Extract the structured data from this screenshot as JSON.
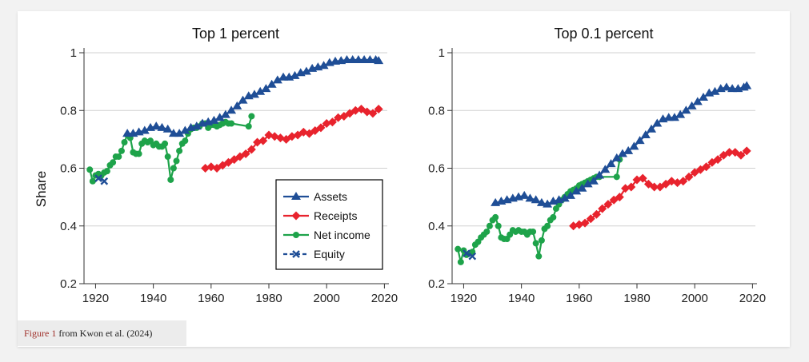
{
  "caption": {
    "figure_ref": "Figure 1",
    "text": " from Kwon et al. (2024)"
  },
  "colors": {
    "assets": "#1f4e96",
    "receipts": "#e8232d",
    "net_income": "#1ea34a",
    "equity": "#1f4e96",
    "grid": "#d0d0d0",
    "axis": "#333333"
  },
  "legend": {
    "placement": "bottom-right of left panel",
    "items": [
      {
        "key": "assets",
        "label": "Assets"
      },
      {
        "key": "receipts",
        "label": "Receipts"
      },
      {
        "key": "net_income",
        "label": "Net income"
      },
      {
        "key": "equity",
        "label": "Equity"
      }
    ]
  },
  "chart_data": [
    {
      "type": "line",
      "title": "Top 1 percent",
      "ylabel": "Share",
      "xlabel": "",
      "xlim": [
        1916,
        2021
      ],
      "ylim": [
        0.2,
        1.0
      ],
      "xticks": [
        "1920",
        "1940",
        "1960",
        "1980",
        "2000",
        "2020"
      ],
      "yticks": [
        "0.2",
        "0.4",
        "0.6",
        "0.8",
        "1"
      ],
      "grid": true,
      "series": [
        {
          "name": "Assets",
          "key": "assets",
          "marker": "triangle",
          "x": [
            1931,
            1933,
            1935,
            1937,
            1939,
            1941,
            1943,
            1945,
            1947,
            1949,
            1951,
            1953,
            1955,
            1957,
            1959,
            1961,
            1963,
            1965,
            1967,
            1969,
            1971,
            1973,
            1975,
            1977,
            1979,
            1981,
            1983,
            1985,
            1987,
            1989,
            1991,
            1993,
            1995,
            1997,
            1999,
            2001,
            2003,
            2005,
            2007,
            2009,
            2011,
            2013,
            2015,
            2017,
            2018
          ],
          "y": [
            0.72,
            0.72,
            0.725,
            0.73,
            0.74,
            0.745,
            0.74,
            0.735,
            0.72,
            0.72,
            0.73,
            0.74,
            0.745,
            0.755,
            0.76,
            0.765,
            0.775,
            0.785,
            0.8,
            0.815,
            0.835,
            0.85,
            0.855,
            0.865,
            0.875,
            0.89,
            0.905,
            0.915,
            0.915,
            0.92,
            0.93,
            0.935,
            0.945,
            0.95,
            0.955,
            0.965,
            0.97,
            0.972,
            0.975,
            0.975,
            0.975,
            0.975,
            0.975,
            0.975,
            0.972
          ]
        },
        {
          "name": "Receipts",
          "key": "receipts",
          "marker": "diamond",
          "x": [
            1958,
            1960,
            1962,
            1964,
            1966,
            1968,
            1970,
            1972,
            1974,
            1976,
            1978,
            1980,
            1982,
            1984,
            1986,
            1988,
            1990,
            1992,
            1994,
            1996,
            1998,
            2000,
            2002,
            2004,
            2006,
            2008,
            2010,
            2012,
            2014,
            2016,
            2018
          ],
          "y": [
            0.6,
            0.605,
            0.6,
            0.61,
            0.62,
            0.63,
            0.64,
            0.65,
            0.665,
            0.69,
            0.695,
            0.715,
            0.71,
            0.705,
            0.7,
            0.71,
            0.715,
            0.725,
            0.72,
            0.73,
            0.74,
            0.755,
            0.76,
            0.775,
            0.78,
            0.79,
            0.8,
            0.805,
            0.795,
            0.79,
            0.805
          ]
        },
        {
          "name": "Net income",
          "key": "net_income",
          "marker": "circle",
          "x": [
            1918,
            1919,
            1920,
            1921,
            1922,
            1923,
            1924,
            1925,
            1926,
            1927,
            1928,
            1929,
            1930,
            1931,
            1932,
            1933,
            1934,
            1935,
            1936,
            1937,
            1938,
            1939,
            1940,
            1941,
            1942,
            1943,
            1944,
            1945,
            1946,
            1947,
            1948,
            1949,
            1950,
            1951,
            1952,
            1953,
            1954,
            1955,
            1956,
            1957,
            1958,
            1959,
            1960,
            1961,
            1962,
            1963,
            1964,
            1965,
            1966,
            1967,
            1973,
            1974
          ],
          "y": [
            0.595,
            0.555,
            0.575,
            0.58,
            0.575,
            0.585,
            0.59,
            0.61,
            0.62,
            0.64,
            0.64,
            0.66,
            0.69,
            0.715,
            0.705,
            0.655,
            0.65,
            0.65,
            0.685,
            0.695,
            0.69,
            0.695,
            0.68,
            0.685,
            0.675,
            0.675,
            0.685,
            0.64,
            0.56,
            0.6,
            0.625,
            0.66,
            0.685,
            0.695,
            0.72,
            0.735,
            0.74,
            0.74,
            0.745,
            0.755,
            0.755,
            0.74,
            0.75,
            0.75,
            0.745,
            0.75,
            0.755,
            0.76,
            0.755,
            0.755,
            0.745,
            0.78
          ]
        },
        {
          "name": "Equity",
          "key": "equity",
          "marker": "x",
          "x": [
            1921,
            1923
          ],
          "y": [
            0.565,
            0.555
          ]
        }
      ]
    },
    {
      "type": "line",
      "title": "Top 0.1 percent",
      "ylabel": "",
      "xlabel": "",
      "xlim": [
        1916,
        2021
      ],
      "ylim": [
        0.2,
        1.0
      ],
      "xticks": [
        "1920",
        "1940",
        "1960",
        "1980",
        "2000",
        "2020"
      ],
      "yticks": [
        "0.2",
        "0.4",
        "0.6",
        "0.8",
        "1"
      ],
      "grid": true,
      "series": [
        {
          "name": "Assets",
          "key": "assets",
          "marker": "triangle",
          "x": [
            1931,
            1933,
            1935,
            1937,
            1939,
            1941,
            1943,
            1945,
            1947,
            1949,
            1951,
            1953,
            1955,
            1957,
            1959,
            1961,
            1963,
            1965,
            1967,
            1969,
            1971,
            1973,
            1975,
            1977,
            1979,
            1981,
            1983,
            1985,
            1987,
            1989,
            1991,
            1993,
            1995,
            1997,
            1999,
            2001,
            2003,
            2005,
            2007,
            2009,
            2011,
            2013,
            2015,
            2017,
            2018
          ],
          "y": [
            0.48,
            0.485,
            0.49,
            0.495,
            0.5,
            0.505,
            0.495,
            0.49,
            0.48,
            0.475,
            0.485,
            0.49,
            0.495,
            0.505,
            0.52,
            0.53,
            0.545,
            0.555,
            0.575,
            0.595,
            0.615,
            0.635,
            0.65,
            0.66,
            0.675,
            0.695,
            0.715,
            0.735,
            0.755,
            0.77,
            0.775,
            0.775,
            0.785,
            0.8,
            0.815,
            0.83,
            0.845,
            0.86,
            0.865,
            0.875,
            0.88,
            0.875,
            0.875,
            0.88,
            0.885
          ]
        },
        {
          "name": "Receipts",
          "key": "receipts",
          "marker": "diamond",
          "x": [
            1958,
            1960,
            1962,
            1964,
            1966,
            1968,
            1970,
            1972,
            1974,
            1976,
            1978,
            1980,
            1982,
            1984,
            1986,
            1988,
            1990,
            1992,
            1994,
            1996,
            1998,
            2000,
            2002,
            2004,
            2006,
            2008,
            2010,
            2012,
            2014,
            2016,
            2018
          ],
          "y": [
            0.4,
            0.405,
            0.41,
            0.425,
            0.44,
            0.46,
            0.475,
            0.49,
            0.5,
            0.53,
            0.535,
            0.56,
            0.565,
            0.545,
            0.535,
            0.535,
            0.545,
            0.555,
            0.55,
            0.555,
            0.57,
            0.585,
            0.595,
            0.605,
            0.62,
            0.63,
            0.645,
            0.655,
            0.655,
            0.645,
            0.66
          ]
        },
        {
          "name": "Net income",
          "key": "net_income",
          "marker": "circle",
          "x": [
            1918,
            1919,
            1920,
            1921,
            1922,
            1923,
            1924,
            1925,
            1926,
            1927,
            1928,
            1929,
            1930,
            1931,
            1932,
            1933,
            1934,
            1935,
            1936,
            1937,
            1938,
            1939,
            1940,
            1941,
            1942,
            1943,
            1944,
            1945,
            1946,
            1947,
            1948,
            1949,
            1950,
            1951,
            1952,
            1953,
            1954,
            1955,
            1956,
            1957,
            1958,
            1959,
            1960,
            1961,
            1962,
            1963,
            1964,
            1965,
            1966,
            1967,
            1973,
            1974
          ],
          "y": [
            0.32,
            0.275,
            0.315,
            0.3,
            0.305,
            0.31,
            0.335,
            0.345,
            0.36,
            0.37,
            0.38,
            0.4,
            0.42,
            0.43,
            0.4,
            0.36,
            0.355,
            0.355,
            0.37,
            0.385,
            0.38,
            0.385,
            0.38,
            0.38,
            0.37,
            0.38,
            0.38,
            0.34,
            0.295,
            0.35,
            0.39,
            0.4,
            0.42,
            0.43,
            0.46,
            0.475,
            0.49,
            0.5,
            0.51,
            0.52,
            0.525,
            0.53,
            0.54,
            0.545,
            0.55,
            0.555,
            0.56,
            0.565,
            0.57,
            0.57,
            0.57,
            0.63
          ]
        },
        {
          "name": "Equity",
          "key": "equity",
          "marker": "x",
          "x": [
            1921,
            1923
          ],
          "y": [
            0.305,
            0.295
          ]
        }
      ]
    }
  ]
}
